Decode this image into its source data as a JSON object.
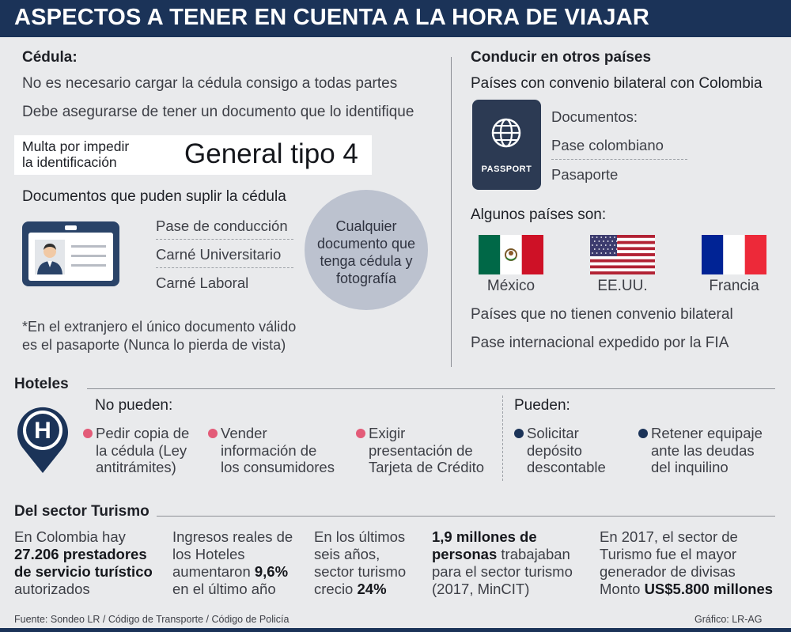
{
  "header": {
    "title": "ASPECTOS A TENER EN CUENTA A LA HORA DE VIAJAR"
  },
  "cedula": {
    "title": "Cédula:",
    "line1": "No es necesario cargar la cédula consigo a todas partes",
    "line2": "Debe asegurarse de tener un documento que lo identifique",
    "multa_label_1": "Multa por impedir",
    "multa_label_2": "la identificación",
    "multa_value": "General tipo 4",
    "suplir_title": "Documentos que puden suplir la cédula",
    "docs": [
      "Pase de conducción",
      "Carné Universitario",
      "Carné Laboral"
    ],
    "circle_lines": [
      "Cualquier",
      "documento que",
      "tenga cédula y",
      "fotografía"
    ],
    "note_1": "*En el extranjero el único documento válido",
    "note_2": "es el pasaporte (Nunca lo pierda de vista)"
  },
  "conducir": {
    "title": "Conducir en otros países",
    "subtitle": "Países con convenio bilateral con Colombia",
    "passport_label": "PASSPORT",
    "docs_title": "Documentos:",
    "docs": [
      "Pase colombiano",
      "Pasaporte"
    ],
    "algunos": "Algunos países son:",
    "countries": [
      "México",
      "EE.UU.",
      "Francia"
    ],
    "no_convenio": "Países que no tienen convenio bilateral",
    "pase_internacional": "Pase internacional expedido por la FIA"
  },
  "hoteles": {
    "title": "Hoteles",
    "icon_letter": "H",
    "no_pueden_title": "No pueden:",
    "no_pueden": [
      [
        "Pedir copia de",
        "la cédula (Ley",
        "antitrámites)"
      ],
      [
        "Vender",
        "información de",
        "los consumidores"
      ],
      [
        "Exigir",
        "presentación de",
        "Tarjeta de Crédito"
      ]
    ],
    "pueden_title": "Pueden:",
    "pueden": [
      [
        "Solicitar",
        "depósito",
        "descontable"
      ],
      [
        "Retener equipaje",
        "ante las deudas",
        "del inquilino"
      ]
    ]
  },
  "turismo": {
    "title": "Del sector Turismo",
    "stat1": {
      "a": "En Colombia hay",
      "b": "27.206 prestadores",
      "c": "de servicio turístico",
      "d": "autorizados"
    },
    "stat2": {
      "a": "Ingresos reales de",
      "b": "los Hoteles",
      "c1": "aumentaron ",
      "c2": "9,6%",
      "d": "en el último año"
    },
    "stat3": {
      "a": "En los últimos",
      "b": "seis años,",
      "c": "sector turismo",
      "d1": "crecio ",
      "d2": "24%"
    },
    "stat4": {
      "a": "1,9 millones de",
      "b1": "personas",
      "b2": " trabajaban",
      "c": "para el sector turismo",
      "d": "(2017, MinCIT)"
    },
    "stat5": {
      "a": "En 2017, el sector de",
      "b": "Turismo fue el mayor",
      "c": "generador de divisas",
      "d1": "Monto ",
      "d2": "US$5.800 millones"
    }
  },
  "footer": {
    "source": "Fuente: Sondeo LR / Código de Transporte / Código de Policía",
    "credit": "Gráfico: LR-AG"
  },
  "colors": {
    "navy": "#1b3358",
    "pink": "#e35b78",
    "background": "#e9eaec",
    "circle": "#bcc2cf"
  }
}
